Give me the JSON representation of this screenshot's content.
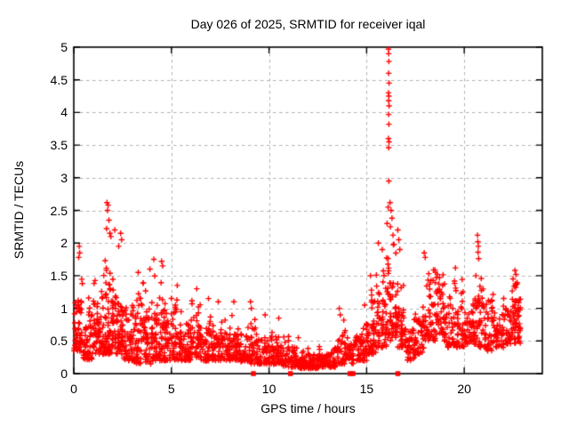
{
  "chart_data": {
    "type": "scatter",
    "title": "Day 026 of 2025, SRMTID for receiver iqal",
    "xlabel": "GPS time / hours",
    "ylabel": "SRMTID / TECUs",
    "xlim": [
      0,
      24
    ],
    "ylim": [
      0,
      5
    ],
    "xticks": [
      0,
      5,
      10,
      15,
      20
    ],
    "xtick_labels": [
      "0",
      "5",
      "10",
      "15",
      "20"
    ],
    "yticks": [
      0,
      0.5,
      1,
      1.5,
      2,
      2.5,
      3,
      3.5,
      4,
      4.5,
      5
    ],
    "ytick_labels": [
      "0",
      "0.5",
      "1",
      "1.5",
      "2",
      "2.5",
      "3",
      "3.5",
      "4",
      "4.5",
      "5"
    ],
    "grid": true,
    "legend": "none",
    "marker": "plus",
    "marker_color": "#ff0000",
    "grid_color": "#b0b0b0",
    "frame_color": "#000000",
    "background": "#ffffff",
    "seed": 123,
    "density_profile_format": [
      "t_start_hour",
      "y_low",
      "y_high",
      "n_points",
      "bin_width_hours"
    ],
    "density_profile": [
      [
        0.0,
        0.35,
        1.75,
        55,
        0.5
      ],
      [
        0.5,
        0.2,
        1.3,
        50,
        0.5
      ],
      [
        1.0,
        0.3,
        1.65,
        55,
        0.5
      ],
      [
        1.5,
        0.3,
        2.0,
        70,
        0.5
      ],
      [
        2.0,
        0.3,
        1.9,
        60,
        0.5
      ],
      [
        2.5,
        0.2,
        1.6,
        50,
        0.5
      ],
      [
        3.0,
        0.15,
        1.3,
        50,
        0.5
      ],
      [
        3.5,
        0.15,
        1.5,
        50,
        0.5
      ],
      [
        4.0,
        0.2,
        1.6,
        55,
        0.5
      ],
      [
        4.5,
        0.2,
        1.5,
        50,
        0.5
      ],
      [
        5.0,
        0.2,
        1.2,
        45,
        0.5
      ],
      [
        5.5,
        0.2,
        1.0,
        45,
        0.5
      ],
      [
        6.0,
        0.25,
        1.2,
        45,
        0.5
      ],
      [
        6.5,
        0.2,
        0.95,
        45,
        0.5
      ],
      [
        7.0,
        0.2,
        0.9,
        40,
        0.5
      ],
      [
        7.5,
        0.2,
        0.95,
        40,
        0.5
      ],
      [
        8.0,
        0.2,
        0.9,
        45,
        0.5
      ],
      [
        8.5,
        0.18,
        0.75,
        40,
        0.5
      ],
      [
        9.0,
        0.15,
        1.05,
        40,
        0.5
      ],
      [
        9.5,
        0.15,
        0.8,
        40,
        0.5
      ],
      [
        10.0,
        0.15,
        0.7,
        45,
        0.5
      ],
      [
        10.5,
        0.12,
        0.75,
        40,
        0.5
      ],
      [
        11.0,
        0.1,
        0.5,
        40,
        0.5
      ],
      [
        11.5,
        0.08,
        0.4,
        45,
        0.5
      ],
      [
        12.0,
        0.08,
        0.35,
        45,
        0.5
      ],
      [
        12.5,
        0.1,
        0.45,
        40,
        0.5
      ],
      [
        13.0,
        0.1,
        0.55,
        40,
        0.5
      ],
      [
        13.5,
        0.15,
        0.95,
        40,
        0.5
      ],
      [
        14.0,
        0.15,
        0.7,
        40,
        0.5
      ],
      [
        14.5,
        0.2,
        0.95,
        40,
        0.5
      ],
      [
        15.0,
        0.3,
        1.4,
        50,
        0.5
      ],
      [
        15.5,
        0.4,
        1.95,
        55,
        0.5
      ],
      [
        16.0,
        0.5,
        2.3,
        55,
        0.5
      ],
      [
        16.5,
        0.4,
        1.8,
        45,
        0.5
      ],
      [
        17.0,
        0.2,
        1.0,
        40,
        0.5
      ],
      [
        17.5,
        0.3,
        1.3,
        40,
        0.5
      ],
      [
        18.0,
        0.5,
        1.8,
        45,
        0.5
      ],
      [
        18.5,
        0.6,
        1.7,
        45,
        0.5
      ],
      [
        19.0,
        0.4,
        1.4,
        40,
        0.5
      ],
      [
        19.5,
        0.4,
        1.65,
        40,
        0.5
      ],
      [
        20.0,
        0.45,
        1.4,
        40,
        0.5
      ],
      [
        20.5,
        0.4,
        1.6,
        45,
        0.5
      ],
      [
        21.0,
        0.35,
        1.25,
        40,
        0.5
      ],
      [
        21.5,
        0.4,
        1.35,
        40,
        0.5
      ],
      [
        22.0,
        0.45,
        1.3,
        40,
        0.5
      ],
      [
        22.5,
        0.45,
        1.6,
        50,
        0.4
      ]
    ],
    "outlier_points": [
      [
        0.28,
        1.95
      ],
      [
        0.3,
        1.85
      ],
      [
        0.25,
        1.78
      ],
      [
        1.7,
        2.62
      ],
      [
        1.76,
        2.58
      ],
      [
        1.73,
        2.5
      ],
      [
        1.8,
        2.35
      ],
      [
        1.68,
        2.22
      ],
      [
        1.85,
        2.15
      ],
      [
        1.9,
        2.1
      ],
      [
        2.1,
        2.2
      ],
      [
        2.4,
        2.15
      ],
      [
        2.45,
        2.05
      ],
      [
        2.3,
        1.95
      ],
      [
        3.3,
        1.55
      ],
      [
        3.9,
        1.6
      ],
      [
        4.1,
        1.75
      ],
      [
        4.5,
        1.72
      ],
      [
        4.55,
        1.65
      ],
      [
        5.3,
        1.35
      ],
      [
        6.3,
        1.3
      ],
      [
        6.9,
        1.15
      ],
      [
        7.4,
        1.1
      ],
      [
        8.2,
        1.1
      ],
      [
        9.05,
        1.1
      ],
      [
        9.1,
        1.0
      ],
      [
        9.8,
        0.9
      ],
      [
        10.5,
        0.85
      ],
      [
        11.5,
        0.55
      ],
      [
        13.6,
        1.0
      ],
      [
        13.65,
        0.9
      ],
      [
        14.9,
        1.05
      ],
      [
        15.2,
        1.5
      ],
      [
        15.6,
        2.0
      ],
      [
        15.8,
        1.9
      ],
      [
        16.12,
        4.97
      ],
      [
        16.13,
        4.9
      ],
      [
        16.14,
        4.78
      ],
      [
        16.13,
        4.6
      ],
      [
        16.15,
        4.45
      ],
      [
        16.12,
        4.3
      ],
      [
        16.14,
        4.25
      ],
      [
        16.13,
        4.18
      ],
      [
        16.15,
        4.1
      ],
      [
        16.13,
        3.97
      ],
      [
        16.14,
        3.82
      ],
      [
        16.12,
        3.6
      ],
      [
        16.15,
        3.55
      ],
      [
        16.13,
        3.46
      ],
      [
        16.14,
        2.95
      ],
      [
        16.1,
        2.55
      ],
      [
        16.05,
        2.3
      ],
      [
        16.2,
        2.62
      ],
      [
        16.25,
        2.5
      ],
      [
        16.3,
        2.38
      ],
      [
        16.22,
        2.25
      ],
      [
        16.35,
        2.12
      ],
      [
        16.4,
        1.98
      ],
      [
        16.6,
        2.2
      ],
      [
        16.65,
        2.05
      ],
      [
        16.7,
        1.9
      ],
      [
        17.95,
        1.85
      ],
      [
        18.0,
        1.78
      ],
      [
        19.55,
        1.62
      ],
      [
        20.68,
        2.12
      ],
      [
        20.7,
        2.02
      ],
      [
        20.72,
        1.95
      ],
      [
        20.71,
        1.86
      ],
      [
        20.74,
        1.76
      ],
      [
        20.6,
        1.5
      ],
      [
        22.6,
        1.58
      ],
      [
        22.65,
        1.52
      ]
    ],
    "zero_square_markers_hours": [
      9.2,
      11.1,
      14.15,
      14.3,
      16.6
    ]
  }
}
